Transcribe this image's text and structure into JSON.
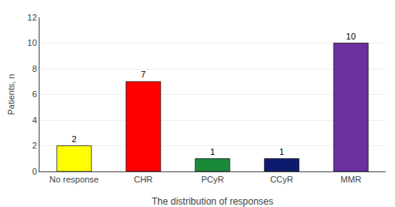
{
  "chart_data": {
    "type": "bar",
    "categories": [
      "No response",
      "CHR",
      "PCyR",
      "CCyR",
      "MMR"
    ],
    "values": [
      2,
      7,
      1,
      1,
      10
    ],
    "colors": [
      "#FFFF00",
      "#FF0000",
      "#1A8A3A",
      "#0D1B6E",
      "#6B2FA0"
    ],
    "xlabel": "The distribution of responses",
    "ylabel": "Patients, n",
    "ylim": [
      0,
      12
    ],
    "yticks": [
      0,
      2,
      4,
      6,
      8,
      10,
      12
    ],
    "grid": true,
    "data_labels": true
  }
}
